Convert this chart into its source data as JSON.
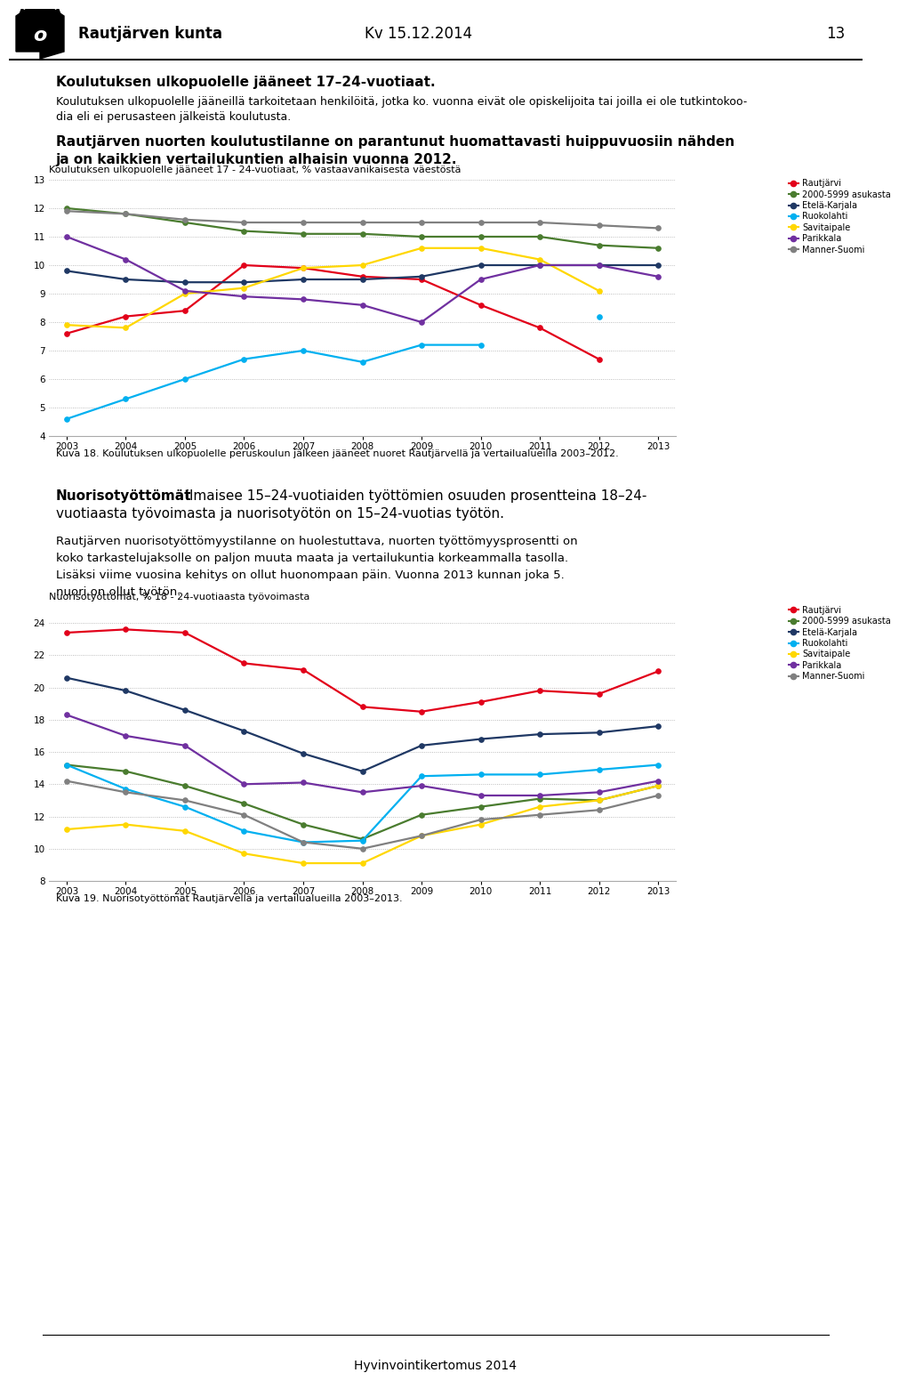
{
  "chart1": {
    "title": "Koulutuksen ulkopuolelle jääneet 17 - 24-vuotiaat, % vastaavanikaisesta väestöstä",
    "years": [
      2003,
      2004,
      2005,
      2006,
      2007,
      2008,
      2009,
      2010,
      2011,
      2012,
      2013
    ],
    "ylim": [
      4,
      13
    ],
    "yticks": [
      4,
      5,
      6,
      7,
      8,
      9,
      10,
      11,
      12,
      13
    ],
    "series": {
      "Rautjärvi": {
        "color": "#e2001a",
        "data": [
          7.6,
          8.2,
          8.4,
          10.0,
          9.9,
          9.6,
          9.5,
          8.6,
          7.8,
          6.7,
          null
        ]
      },
      "2000-5999 asukasta": {
        "color": "#4a7c2f",
        "data": [
          12.0,
          11.8,
          11.5,
          11.2,
          11.1,
          11.1,
          11.0,
          11.0,
          11.0,
          10.7,
          10.6
        ]
      },
      "Etelä-Karjala": {
        "color": "#1f3864",
        "data": [
          9.8,
          9.5,
          9.4,
          9.4,
          9.5,
          9.5,
          9.6,
          10.0,
          10.0,
          10.0,
          10.0
        ]
      },
      "Ruokolahti": {
        "color": "#00b0f0",
        "data": [
          4.6,
          5.3,
          6.0,
          6.7,
          7.0,
          6.6,
          7.2,
          7.2,
          null,
          8.2,
          null
        ]
      },
      "Savitaipale": {
        "color": "#ffd700",
        "data": [
          7.9,
          7.8,
          9.0,
          9.2,
          9.9,
          10.0,
          10.6,
          10.6,
          10.2,
          9.1,
          null
        ]
      },
      "Parikkala": {
        "color": "#7030a0",
        "data": [
          11.0,
          10.2,
          9.1,
          8.9,
          8.8,
          8.6,
          8.0,
          9.5,
          10.0,
          10.0,
          9.6
        ]
      },
      "Manner-Suomi": {
        "color": "#808080",
        "data": [
          11.9,
          11.8,
          11.6,
          11.5,
          11.5,
          11.5,
          11.5,
          11.5,
          11.5,
          11.4,
          11.3
        ]
      }
    }
  },
  "chart2": {
    "title": "Nuorisotyöttömät, % 18 - 24-vuotiaasta työvoimasta",
    "years": [
      2003,
      2004,
      2005,
      2006,
      2007,
      2008,
      2009,
      2010,
      2011,
      2012,
      2013
    ],
    "ylim": [
      8,
      25
    ],
    "yticks": [
      8,
      10,
      12,
      14,
      16,
      18,
      20,
      22,
      24
    ],
    "series": {
      "Rautjärvi": {
        "color": "#e2001a",
        "data": [
          23.4,
          23.6,
          23.4,
          21.5,
          21.1,
          18.8,
          18.5,
          19.1,
          19.8,
          19.6,
          21.0
        ]
      },
      "2000-5999 asukasta": {
        "color": "#4a7c2f",
        "data": [
          15.2,
          14.8,
          13.9,
          12.8,
          11.5,
          10.6,
          12.1,
          12.6,
          13.1,
          13.0,
          13.9
        ]
      },
      "Etelä-Karjala": {
        "color": "#1f3864",
        "data": [
          20.6,
          19.8,
          18.6,
          17.3,
          15.9,
          14.8,
          16.4,
          16.8,
          17.1,
          17.2,
          17.6
        ]
      },
      "Ruokolahti": {
        "color": "#00b0f0",
        "data": [
          15.2,
          13.7,
          12.6,
          11.1,
          10.4,
          10.5,
          14.5,
          14.6,
          14.6,
          14.9,
          15.2
        ]
      },
      "Savitaipale": {
        "color": "#ffd700",
        "data": [
          11.2,
          11.5,
          11.1,
          9.7,
          9.1,
          9.1,
          10.8,
          11.5,
          12.6,
          13.0,
          13.9
        ]
      },
      "Parikkala": {
        "color": "#7030a0",
        "data": [
          18.3,
          17.0,
          16.4,
          14.0,
          14.1,
          13.5,
          13.9,
          13.3,
          13.3,
          13.5,
          14.2
        ]
      },
      "Manner-Suomi": {
        "color": "#808080",
        "data": [
          14.2,
          13.5,
          13.0,
          12.1,
          10.4,
          10.0,
          10.8,
          11.8,
          12.1,
          12.4,
          13.3
        ]
      }
    }
  },
  "page_title": "Rautjärven kunta",
  "page_subtitle": "Kv 15.12.2014",
  "page_number": "13",
  "heading1": "Koulutuksen ulkopuolelle jääneet 17–24-vuotiaat.",
  "heading1b": "Koulutuksen ulkopuolelle jääneillä tarkoitetaan henkilöitä, jotka ko. vuonna eivät ole opiskelijoita tai joilla ei ole tutkintokoodia eli ei perusasteen jälkeistä koulutusta.",
  "bold_text1": "Rautjärven nuorten koulutustilanne on parantunut huomattavasti huippuvuosiin nähden ja on kaikkien vertailukuntien alhaisin vuonna 2012.",
  "caption1": "Kuva 18. Koulutuksen ulkopuolelle peruskoulun jälkeen jääneet nuoret Rautjärvellä ja vertailualueilla 2003–2012.",
  "nuoriso_bold": "Nuorisotyöttömät",
  "nuoriso_normal": " ilmaisee 15–24-vuotiaiden työttömien osuuden prosentteina 18–24-vuotiaasta työvoimasta ja nuorisotyötön on 15–24-vuotias työtön.",
  "bold_text2": "Rautjärven nuorisotyöttömyystilanne on huolestuttava, nuorten työttömyysprosentti on koko tarkastelujaksolle on paljon muuta maata ja vertailukuntia korkeammalla tasolla. Lisäksi viime vuosina kehitys on ollut huonompaan päin. Vuonna 2013 kunnan joka 5. nuori on ollut työtön.",
  "caption2": "Kuva 19. Nuorisotyöttömät Rautjärvellä ja vertailualueilla 2003–2013.",
  "footer": "Hyvinvointikertomus 2014",
  "background_color": "#ffffff",
  "chart_border": "#bbbbbb",
  "legend_order": [
    "Rautjärvi",
    "2000-5999 asukasta",
    "Etelä-Karjala",
    "Ruokolahti",
    "Savitaipale",
    "Parikkala",
    "Manner-Suomi"
  ]
}
